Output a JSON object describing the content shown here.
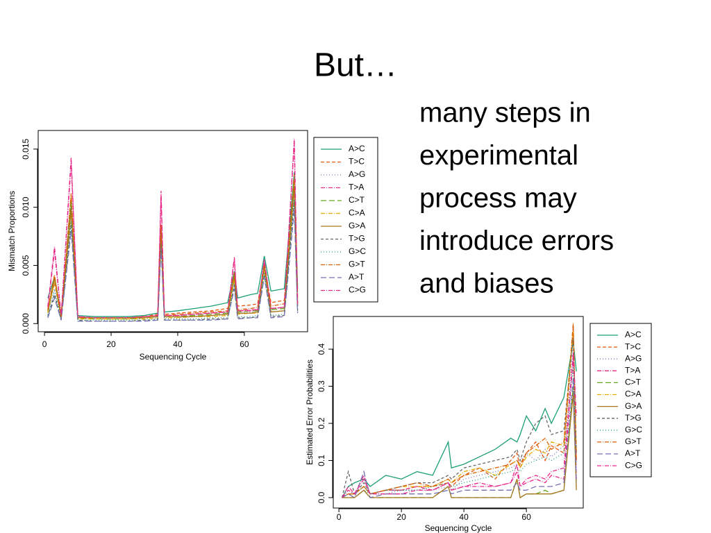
{
  "title": "But…",
  "text_lines": [
    "many steps in",
    "experimental",
    "process may",
    "introduce errors",
    "and biases"
  ],
  "chart_data": [
    {
      "type": "line",
      "xlabel": "Sequencing Cycle",
      "ylabel": "Mismatch Proportions",
      "xlim": [
        -1.9,
        79
      ],
      "ylim": [
        -0.0007,
        0.0166
      ],
      "xticks": [
        0,
        20,
        40,
        60
      ],
      "yticks": [
        {
          "value": 0,
          "label": "0.000"
        },
        {
          "value": 0.005,
          "label": "0.005"
        },
        {
          "value": 0.01,
          "label": "0.010"
        },
        {
          "value": 0.015,
          "label": "0.015"
        }
      ],
      "x": [
        1,
        3,
        5,
        8,
        10,
        15,
        20,
        25,
        30,
        34,
        35,
        36,
        40,
        45,
        50,
        55,
        57,
        58,
        62,
        64,
        66,
        68,
        72,
        75,
        76
      ],
      "series": [
        {
          "name": "A>C",
          "color": "#1b9e77",
          "dash": "none",
          "values": [
            0.0022,
            0.004,
            0.0008,
            0.01,
            0.0007,
            0.0006,
            0.0006,
            0.0006,
            0.0007,
            0.0009,
            0.008,
            0.001,
            0.0011,
            0.0013,
            0.0015,
            0.0018,
            0.0045,
            0.0022,
            0.0025,
            0.0026,
            0.0058,
            0.0028,
            0.003,
            0.013,
            0.003
          ]
        },
        {
          "name": "T>C",
          "color": "#e6550d",
          "dash": "5,3",
          "values": [
            0.0012,
            0.0035,
            0.0006,
            0.011,
            0.0005,
            0.0005,
            0.0005,
            0.0005,
            0.0006,
            0.0008,
            0.0085,
            0.0008,
            0.0009,
            0.001,
            0.0011,
            0.0013,
            0.004,
            0.0015,
            0.0016,
            0.0017,
            0.005,
            0.0018,
            0.002,
            0.012,
            0.0025
          ]
        },
        {
          "name": "A>G",
          "color": "#7570b3",
          "dash": "1,3",
          "values": [
            0.0008,
            0.003,
            0.0004,
            0.009,
            0.0004,
            0.0004,
            0.0004,
            0.0004,
            0.0004,
            0.0005,
            0.007,
            0.0005,
            0.0005,
            0.0006,
            0.0007,
            0.0008,
            0.0035,
            0.0009,
            0.001,
            0.0011,
            0.0045,
            0.0012,
            0.0014,
            0.011,
            0.0015
          ]
        },
        {
          "name": "T>A",
          "color": "#e7298a",
          "dash": "6,2,1,2",
          "values": [
            0.0015,
            0.0066,
            0.0007,
            0.0143,
            0.0006,
            0.0005,
            0.0005,
            0.0005,
            0.0006,
            0.0007,
            0.0114,
            0.0007,
            0.0007,
            0.0008,
            0.0009,
            0.001,
            0.0057,
            0.0011,
            0.0012,
            0.0012,
            0.0055,
            0.0013,
            0.0014,
            0.0159,
            0.0018
          ]
        },
        {
          "name": "C>T",
          "color": "#66a61e",
          "dash": "8,4",
          "values": [
            0.001,
            0.0038,
            0.0005,
            0.0105,
            0.0005,
            0.0004,
            0.0004,
            0.0004,
            0.0005,
            0.0006,
            0.008,
            0.0006,
            0.0006,
            0.0007,
            0.0008,
            0.0009,
            0.004,
            0.001,
            0.0011,
            0.0011,
            0.0048,
            0.0012,
            0.0013,
            0.0125,
            0.0016
          ]
        },
        {
          "name": "C>A",
          "color": "#e6ab02",
          "dash": "6,2,1,2",
          "values": [
            0.0009,
            0.0036,
            0.0005,
            0.0095,
            0.0004,
            0.0004,
            0.0004,
            0.0004,
            0.0004,
            0.0005,
            0.0075,
            0.0005,
            0.0005,
            0.0006,
            0.0006,
            0.0007,
            0.0038,
            0.0008,
            0.0009,
            0.0009,
            0.0046,
            0.001,
            0.0011,
            0.012,
            0.0014
          ]
        },
        {
          "name": "G>A",
          "color": "#a6761d",
          "dash": "none",
          "values": [
            0.0011,
            0.004,
            0.0006,
            0.0098,
            0.0005,
            0.0005,
            0.0005,
            0.0005,
            0.0005,
            0.0006,
            0.0078,
            0.0006,
            0.0006,
            0.0006,
            0.0007,
            0.0008,
            0.0042,
            0.0009,
            0.0009,
            0.001,
            0.005,
            0.001,
            0.0011,
            0.0118,
            0.0015
          ]
        },
        {
          "name": "T>G",
          "color": "#666666",
          "dash": "4,3",
          "values": [
            0.0006,
            0.0025,
            0.0003,
            0.0085,
            0.0003,
            0.0002,
            0.0002,
            0.0002,
            0.0003,
            0.0003,
            0.0068,
            0.0003,
            0.0003,
            0.0003,
            0.0004,
            0.0004,
            0.0033,
            0.0005,
            0.0005,
            0.0006,
            0.0042,
            0.0006,
            0.0007,
            0.0105,
            0.001
          ]
        },
        {
          "name": "G>C",
          "color": "#1b9e77",
          "dash": "1,3",
          "values": [
            0.0007,
            0.0028,
            0.0004,
            0.0088,
            0.0003,
            0.0003,
            0.0003,
            0.0003,
            0.0003,
            0.0004,
            0.007,
            0.0004,
            0.0004,
            0.0004,
            0.0005,
            0.0005,
            0.0034,
            0.0006,
            0.0006,
            0.0007,
            0.0044,
            0.0007,
            0.0008,
            0.0108,
            0.0011
          ]
        },
        {
          "name": "G>T",
          "color": "#d95f02",
          "dash": "6,2,1,2",
          "values": [
            0.0012,
            0.0042,
            0.0006,
            0.0112,
            0.0005,
            0.0005,
            0.0005,
            0.0005,
            0.0006,
            0.0007,
            0.0085,
            0.0007,
            0.0008,
            0.0009,
            0.001,
            0.0011,
            0.0044,
            0.0012,
            0.0013,
            0.0014,
            0.0052,
            0.0015,
            0.0017,
            0.0128,
            0.0022
          ]
        },
        {
          "name": "A>T",
          "color": "#7570b3",
          "dash": "8,4",
          "values": [
            0.0005,
            0.0022,
            0.0003,
            0.008,
            0.0002,
            0.0002,
            0.0002,
            0.0002,
            0.0002,
            0.0003,
            0.0065,
            0.0003,
            0.0003,
            0.0003,
            0.0003,
            0.0004,
            0.003,
            0.0004,
            0.0005,
            0.0005,
            0.004,
            0.0005,
            0.0006,
            0.0098,
            0.0009
          ]
        },
        {
          "name": "C>G",
          "color": "#e7298a",
          "dash": "6,2,1,2",
          "values": [
            0.0014,
            0.0062,
            0.0007,
            0.0138,
            0.0006,
            0.0005,
            0.0005,
            0.0005,
            0.0006,
            0.0007,
            0.011,
            0.0007,
            0.0007,
            0.0008,
            0.0009,
            0.001,
            0.0055,
            0.0011,
            0.0011,
            0.0012,
            0.0054,
            0.0013,
            0.0014,
            0.0155,
            0.0017
          ]
        }
      ]
    },
    {
      "type": "line",
      "xlabel": "Sequencing Cycle",
      "ylabel": "Estimated Error Probabilities",
      "xlim": [
        -1.8,
        78.2
      ],
      "ylim": [
        -0.028,
        0.488
      ],
      "xticks": [
        0,
        20,
        40,
        60
      ],
      "yticks": [
        {
          "value": 0,
          "label": "0.0"
        },
        {
          "value": 0.1,
          "label": "0.1"
        },
        {
          "value": 0.2,
          "label": "0.2"
        },
        {
          "value": 0.3,
          "label": "0.3"
        },
        {
          "value": 0.4,
          "label": "0.4"
        }
      ],
      "x": [
        1,
        3,
        5,
        8,
        10,
        15,
        20,
        25,
        30,
        35,
        36,
        40,
        45,
        50,
        55,
        57,
        58,
        60,
        63,
        66,
        68,
        72,
        75,
        76
      ],
      "series": [
        {
          "name": "A>C",
          "color": "#1b9e77",
          "dash": "none",
          "values": [
            0.0,
            0.03,
            0.04,
            0.05,
            0.03,
            0.06,
            0.05,
            0.07,
            0.06,
            0.15,
            0.08,
            0.09,
            0.11,
            0.13,
            0.16,
            0.15,
            0.17,
            0.22,
            0.18,
            0.24,
            0.2,
            0.27,
            0.42,
            0.34
          ]
        },
        {
          "name": "T>C",
          "color": "#e6550d",
          "dash": "5,3",
          "values": [
            0.0,
            0.01,
            0.01,
            0.03,
            0.01,
            0.02,
            0.02,
            0.03,
            0.03,
            0.04,
            0.03,
            0.06,
            0.08,
            0.05,
            0.1,
            0.12,
            0.08,
            0.12,
            0.15,
            0.1,
            0.14,
            0.12,
            0.46,
            0.1
          ]
        },
        {
          "name": "A>G",
          "color": "#7570b3",
          "dash": "1,3",
          "values": [
            0.0,
            0.01,
            0.0,
            0.02,
            0.01,
            0.01,
            0.02,
            0.02,
            0.02,
            0.03,
            0.02,
            0.05,
            0.06,
            0.07,
            0.08,
            0.09,
            0.1,
            0.12,
            0.1,
            0.13,
            0.11,
            0.14,
            0.4,
            0.08
          ]
        },
        {
          "name": "T>A",
          "color": "#e7298a",
          "dash": "6,2,1,2",
          "values": [
            0.0,
            0.03,
            0.01,
            0.06,
            0.01,
            0.02,
            0.02,
            0.03,
            0.02,
            0.04,
            0.02,
            0.03,
            0.04,
            0.03,
            0.04,
            0.07,
            0.03,
            0.04,
            0.05,
            0.04,
            0.06,
            0.05,
            0.38,
            0.05
          ]
        },
        {
          "name": "C>T",
          "color": "#66a61e",
          "dash": "8,4",
          "values": [
            0.0,
            0.0,
            0.0,
            0.02,
            0.0,
            0.0,
            0.0,
            0.0,
            0.0,
            0.03,
            0.0,
            0.0,
            0.0,
            0.0,
            0.0,
            0.05,
            0.0,
            0.01,
            0.01,
            0.02,
            0.01,
            0.02,
            0.3,
            0.03
          ]
        },
        {
          "name": "C>A",
          "color": "#e6ab02",
          "dash": "6,2,1,2",
          "values": [
            0.0,
            0.01,
            0.01,
            0.03,
            0.01,
            0.02,
            0.03,
            0.03,
            0.03,
            0.05,
            0.04,
            0.07,
            0.08,
            0.06,
            0.09,
            0.1,
            0.08,
            0.11,
            0.13,
            0.12,
            0.15,
            0.14,
            0.45,
            0.12
          ]
        },
        {
          "name": "G>A",
          "color": "#a6761d",
          "dash": "none",
          "values": [
            0.0,
            0.0,
            0.0,
            0.02,
            0.0,
            0.0,
            0.0,
            0.0,
            0.0,
            0.03,
            0.0,
            0.0,
            0.0,
            0.0,
            0.0,
            0.05,
            0.0,
            0.01,
            0.01,
            0.01,
            0.01,
            0.02,
            0.28,
            0.02
          ]
        },
        {
          "name": "T>G",
          "color": "#666666",
          "dash": "4,3",
          "values": [
            0.0,
            0.07,
            0.01,
            0.04,
            0.01,
            0.02,
            0.03,
            0.04,
            0.04,
            0.06,
            0.05,
            0.08,
            0.09,
            0.1,
            0.11,
            0.13,
            0.1,
            0.15,
            0.2,
            0.22,
            0.17,
            0.18,
            0.43,
            0.12
          ]
        },
        {
          "name": "G>C",
          "color": "#1b9e77",
          "dash": "1,3",
          "values": [
            0.0,
            0.02,
            0.01,
            0.03,
            0.01,
            0.02,
            0.02,
            0.02,
            0.03,
            0.04,
            0.03,
            0.04,
            0.05,
            0.06,
            0.07,
            0.08,
            0.07,
            0.09,
            0.1,
            0.11,
            0.1,
            0.12,
            0.35,
            0.09
          ]
        },
        {
          "name": "G>T",
          "color": "#d95f02",
          "dash": "6,2,1,2",
          "values": [
            0.0,
            0.01,
            0.01,
            0.03,
            0.01,
            0.02,
            0.03,
            0.04,
            0.03,
            0.05,
            0.04,
            0.06,
            0.07,
            0.08,
            0.09,
            0.1,
            0.09,
            0.12,
            0.14,
            0.16,
            0.13,
            0.15,
            0.47,
            0.1
          ]
        },
        {
          "name": "A>T",
          "color": "#7570b3",
          "dash": "8,4",
          "values": [
            0.0,
            0.01,
            0.0,
            0.07,
            0.0,
            0.01,
            0.01,
            0.01,
            0.01,
            0.02,
            0.01,
            0.02,
            0.02,
            0.02,
            0.02,
            0.04,
            0.02,
            0.02,
            0.03,
            0.03,
            0.03,
            0.04,
            0.32,
            0.04
          ]
        },
        {
          "name": "C>G",
          "color": "#e7298a",
          "dash": "6,2,1,2",
          "values": [
            0.0,
            0.02,
            0.01,
            0.05,
            0.01,
            0.01,
            0.01,
            0.02,
            0.02,
            0.04,
            0.02,
            0.03,
            0.03,
            0.03,
            0.04,
            0.09,
            0.03,
            0.05,
            0.06,
            0.05,
            0.07,
            0.08,
            0.39,
            0.22
          ]
        }
      ]
    }
  ]
}
